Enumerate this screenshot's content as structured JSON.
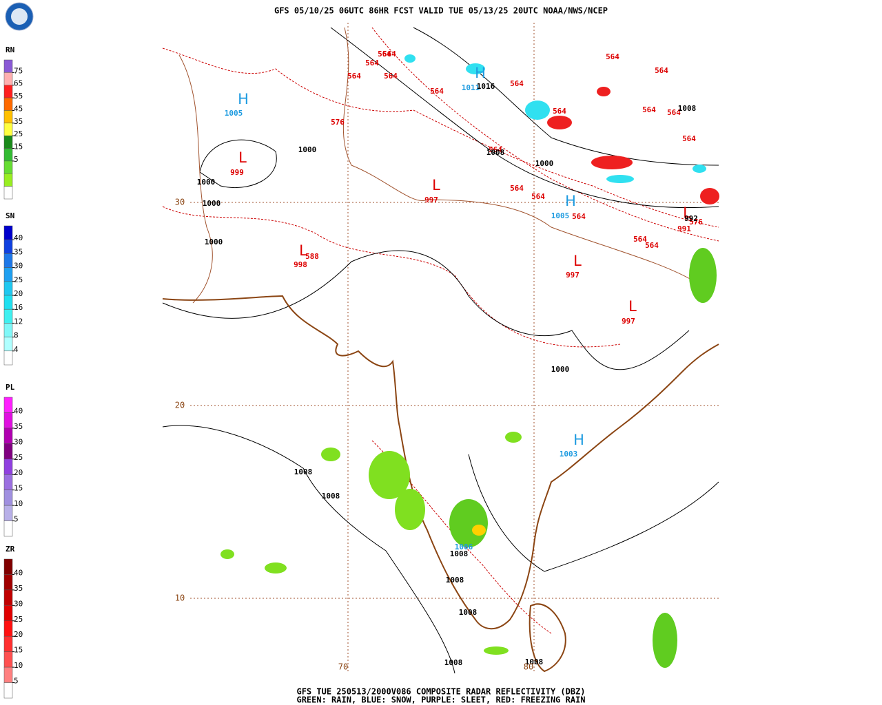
{
  "header": {
    "title": "GFS 05/10/25 06UTC 86HR FCST VALID TUE 05/13/25 20UTC NOAA/NWS/NCEP"
  },
  "legend": [
    {
      "label": "RN",
      "ticks": [
        75,
        65,
        55,
        45,
        35,
        25,
        15,
        5
      ],
      "colors": [
        "#8a5ad6",
        "#ffb0b0",
        "#ff2020",
        "#ff6a00",
        "#ffc000",
        "#ffff40",
        "#1a8a1a",
        "#33bb33",
        "#66dd33",
        "#99ee22",
        "#ffffff"
      ]
    },
    {
      "label": "SN",
      "ticks": [
        40,
        35,
        30,
        25,
        20,
        16,
        12,
        8,
        4
      ],
      "colors": [
        "#0000cc",
        "#1040e0",
        "#1e78e8",
        "#20a0f0",
        "#20c8f0",
        "#20e0f0",
        "#40f0f0",
        "#80f8f8",
        "#b0ffff",
        "#ffffff"
      ]
    },
    {
      "label": "PL",
      "ticks": [
        40,
        35,
        30,
        25,
        20,
        15,
        10,
        5
      ],
      "colors": [
        "#ff20ff",
        "#e010e0",
        "#b000b0",
        "#800080",
        "#9040e0",
        "#9b70e0",
        "#a090e0",
        "#b8b0e8",
        "#ffffff"
      ]
    },
    {
      "label": "ZR",
      "ticks": [
        40,
        35,
        30,
        25,
        20,
        15,
        10,
        5
      ],
      "colors": [
        "#800000",
        "#a00000",
        "#c00000",
        "#e00000",
        "#ff1010",
        "#ff3030",
        "#ff5050",
        "#ff8080",
        "#ffffff"
      ]
    }
  ],
  "map": {
    "blue_labels": [
      "H",
      "1005",
      "H",
      "1011",
      "H",
      "1005",
      "H",
      "1003",
      "1006"
    ],
    "red_labels": [
      "564",
      "564",
      "564",
      "564",
      "564",
      "564",
      "564",
      "564",
      "564",
      "564",
      "564",
      "564",
      "564",
      "564",
      "564",
      "564",
      "564",
      "564",
      "564",
      "576",
      "588",
      "576",
      "L",
      "999",
      "L",
      "997",
      "L",
      "998",
      "L",
      "997",
      "L",
      "997",
      "L",
      "991"
    ],
    "black_labels": [
      "1016",
      "1008",
      "1000",
      "1008",
      "1000",
      "1000",
      "1000",
      "1000",
      "1000",
      "1008",
      "1008",
      "1008",
      "1008",
      "1008",
      "1008",
      "1008",
      "992"
    ],
    "grid_labels": [
      "30",
      "20",
      "10",
      "70",
      "80"
    ]
  },
  "footer": {
    "line1": "GFS TUE 250513/2000V086 COMPOSITE RADAR REFLECTIVITY (DBZ)",
    "line2": "GREEN: RAIN, BLUE: SNOW, PURPLE: SLEET, RED: FREEZING RAIN"
  }
}
